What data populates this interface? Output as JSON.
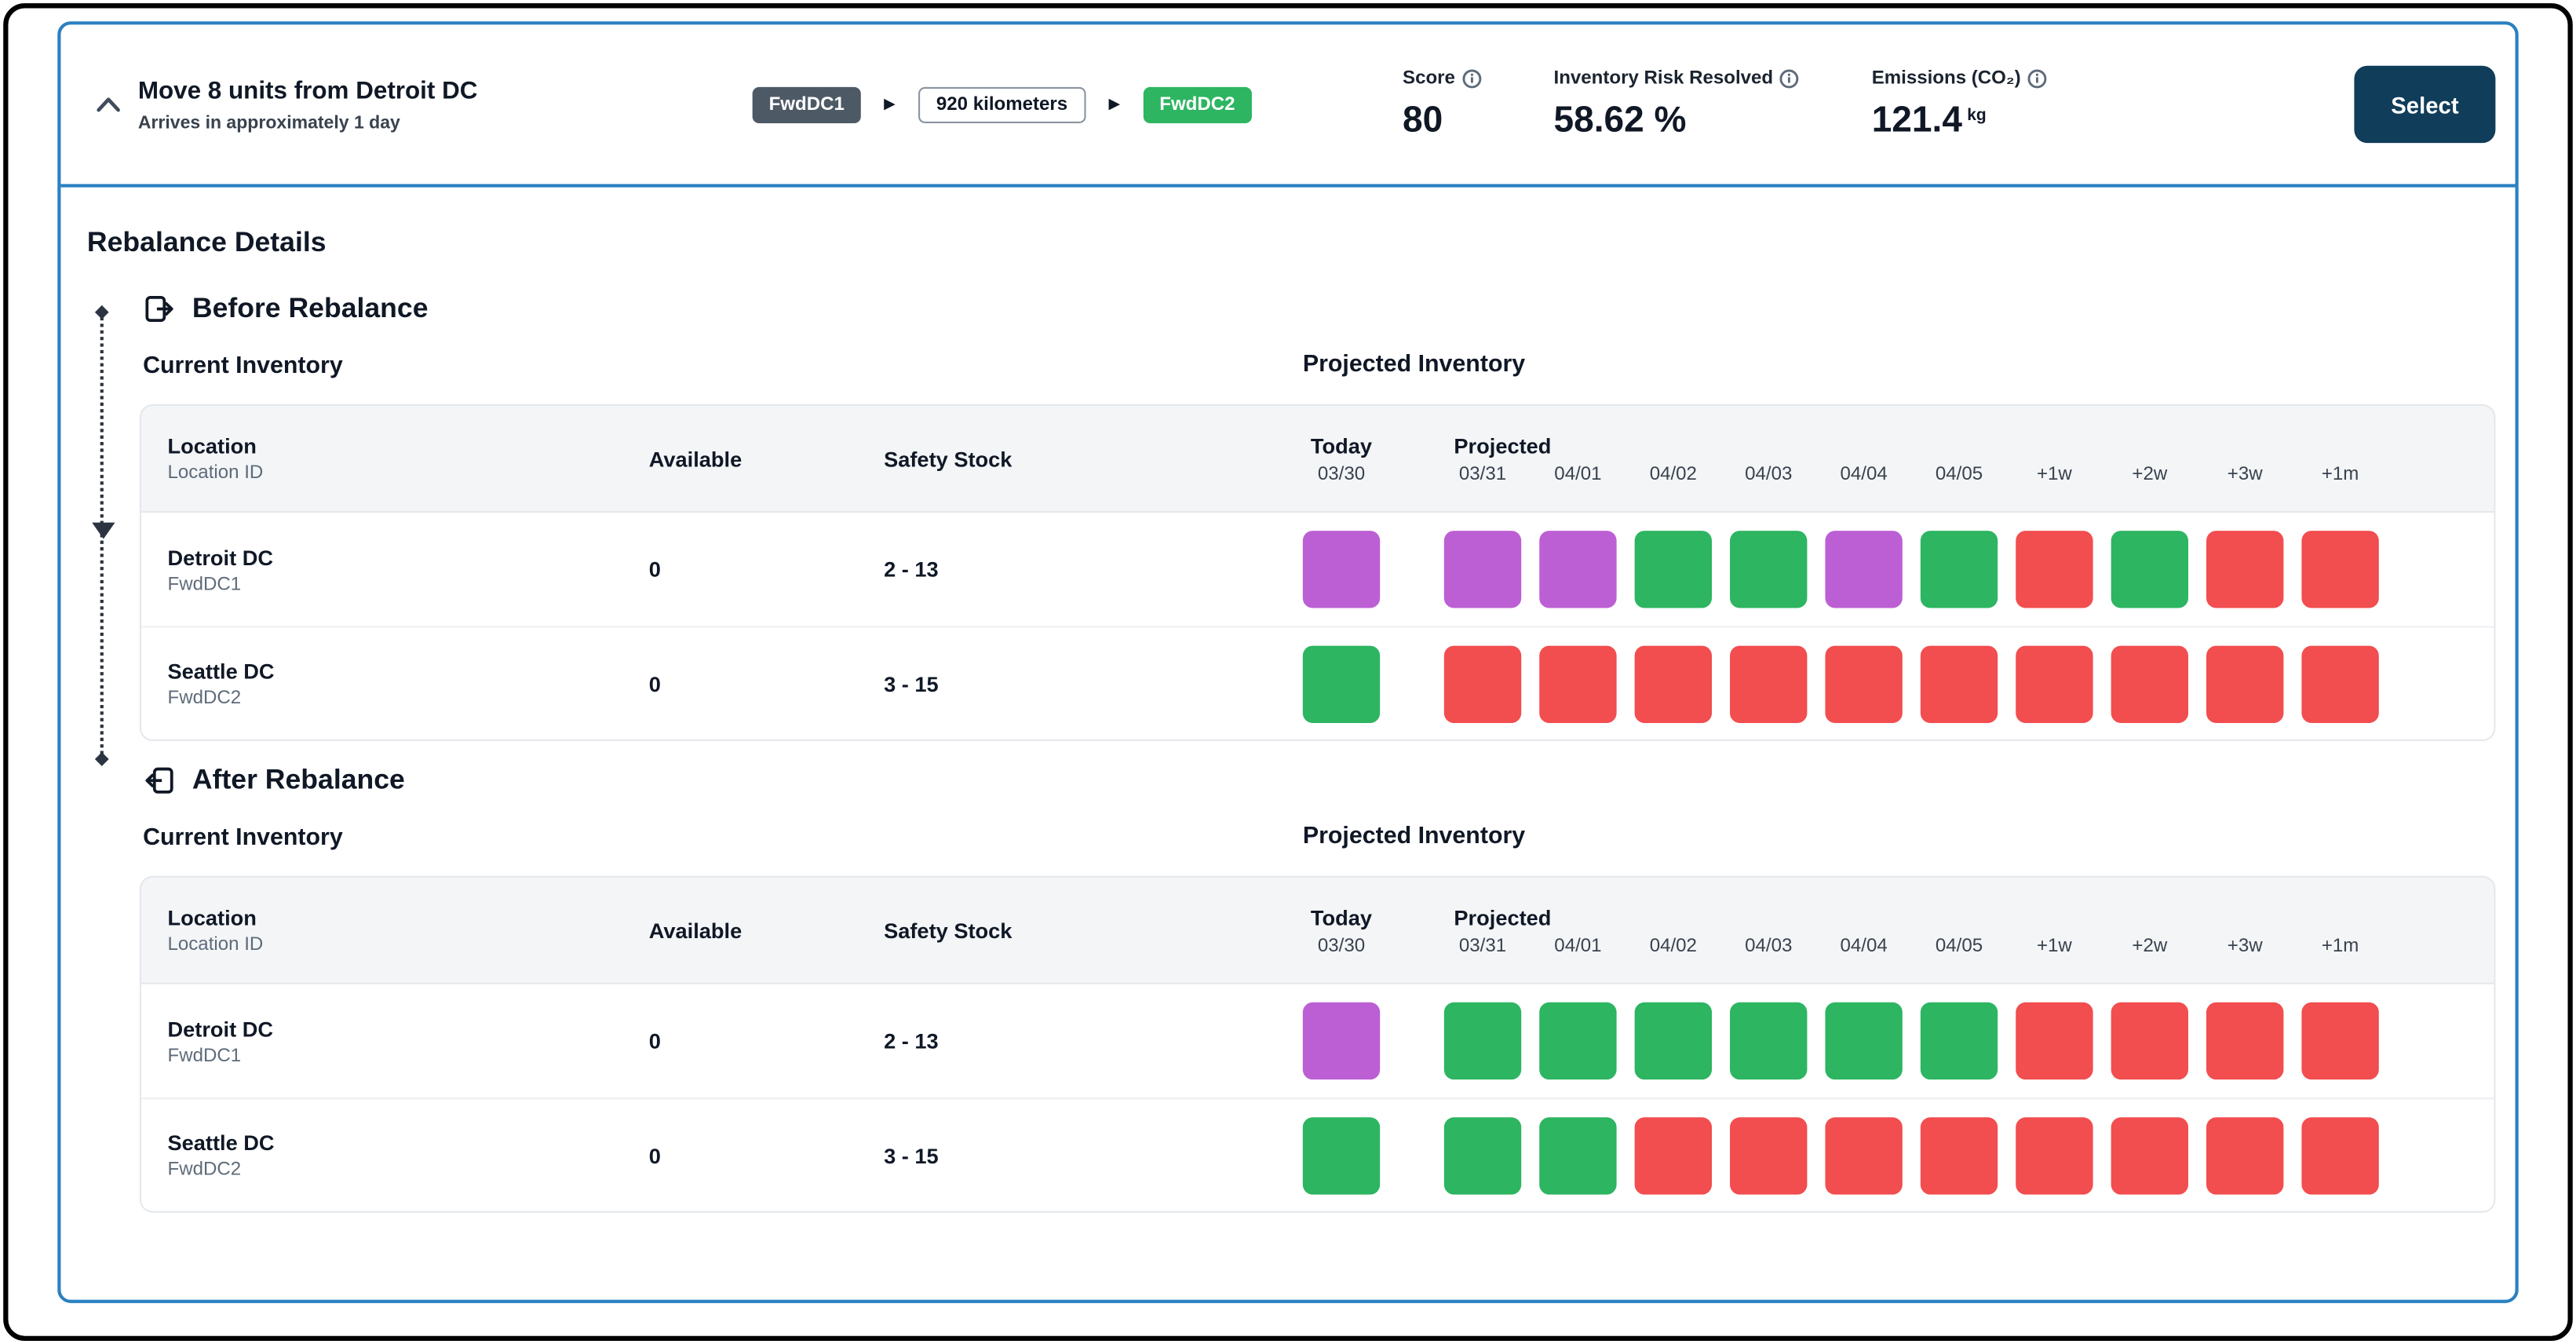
{
  "colors": {
    "green": "#2db561",
    "red": "#f24d4f",
    "purple": "#bc5fd4"
  },
  "header": {
    "title": "Move 8 units from Detroit DC",
    "subtitle": "Arrives in approximately 1 day",
    "route": {
      "from": "FwdDC1",
      "distance": "920 kilometers",
      "to": "FwdDC2"
    },
    "metrics": {
      "score_label": "Score",
      "score_value": "80",
      "risk_label": "Inventory Risk Resolved",
      "risk_value": "58.62 %",
      "emissions_label": "Emissions (CO₂)",
      "emissions_value": "121.4",
      "emissions_unit": "kg"
    },
    "select_button": "Select"
  },
  "details_title": "Rebalance Details",
  "table_columns": {
    "location": "Location",
    "location_sub": "Location ID",
    "available": "Available",
    "safety": "Safety Stock",
    "today": "Today",
    "today_date": "03/30",
    "projected": "Projected",
    "projected_dates": [
      "03/31",
      "04/01",
      "04/02",
      "04/03",
      "04/04",
      "04/05",
      "+1w",
      "+2w",
      "+3w",
      "+1m"
    ]
  },
  "sections": [
    {
      "heading": "Before Rebalance",
      "icon": "before-rebalance-icon",
      "current_label": "Current Inventory",
      "projected_label": "Projected Inventory",
      "rows": [
        {
          "location": "Detroit DC",
          "id": "FwdDC1",
          "available": "0",
          "safety": "2 - 13",
          "today": "purple",
          "projected": [
            "purple",
            "purple",
            "green",
            "green",
            "purple",
            "green",
            "red",
            "green",
            "red",
            "red"
          ]
        },
        {
          "location": "Seattle DC",
          "id": "FwdDC2",
          "available": "0",
          "safety": "3 - 15",
          "today": "green",
          "projected": [
            "red",
            "red",
            "red",
            "red",
            "red",
            "red",
            "red",
            "red",
            "red",
            "red"
          ]
        }
      ]
    },
    {
      "heading": "After Rebalance",
      "icon": "after-rebalance-icon",
      "current_label": "Current Inventory",
      "projected_label": "Projected Inventory",
      "rows": [
        {
          "location": "Detroit DC",
          "id": "FwdDC1",
          "available": "0",
          "safety": "2 - 13",
          "today": "purple",
          "projected": [
            "green",
            "green",
            "green",
            "green",
            "green",
            "green",
            "red",
            "red",
            "red",
            "red"
          ]
        },
        {
          "location": "Seattle DC",
          "id": "FwdDC2",
          "available": "0",
          "safety": "3 - 15",
          "today": "green",
          "projected": [
            "green",
            "green",
            "red",
            "red",
            "red",
            "red",
            "red",
            "red",
            "red",
            "red"
          ]
        }
      ]
    }
  ]
}
